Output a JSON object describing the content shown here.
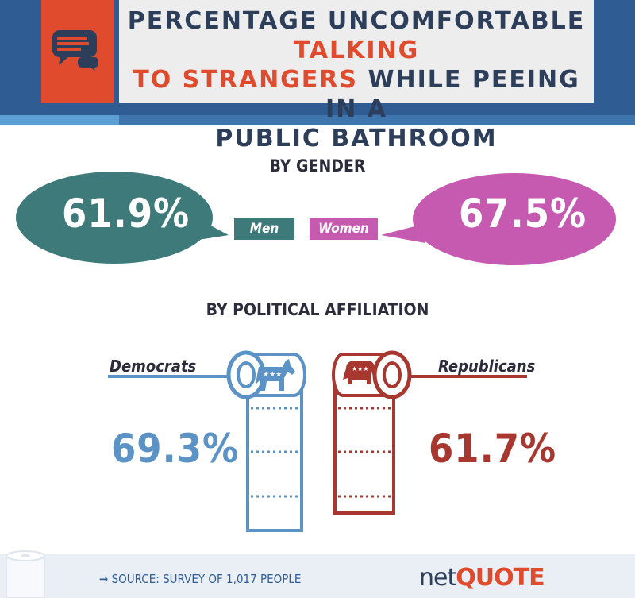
{
  "title": {
    "part1": "PERCENTAGE UNCOMFORTABLE ",
    "highlight1": "TALKING",
    "highlight2": "TO STRANGERS",
    "part2": " WHILE PEEING IN A",
    "part3": "PUBLIC BATHROOM",
    "icon": "speech-bubbles-icon"
  },
  "gender": {
    "label": "BY GENDER",
    "men": {
      "label": "Men",
      "value": "61.9%",
      "color": "#3f7a7a"
    },
    "women": {
      "label": "Women",
      "value": "67.5%",
      "color": "#c55ab0"
    }
  },
  "political": {
    "label": "BY POLITICAL AFFILIATION",
    "democrats": {
      "label": "Democrats",
      "value": "69.3%",
      "color": "#5b93c7",
      "icon": "donkey-icon"
    },
    "republicans": {
      "label": "Republicans",
      "value": "61.7%",
      "color": "#a8382f",
      "icon": "elephant-icon"
    }
  },
  "footer": {
    "source_label": "SOURCE:",
    "source_text": " SURVEY OF 1,017 PEOPLE",
    "logo_net": "net",
    "logo_quote": "QUOTE"
  }
}
